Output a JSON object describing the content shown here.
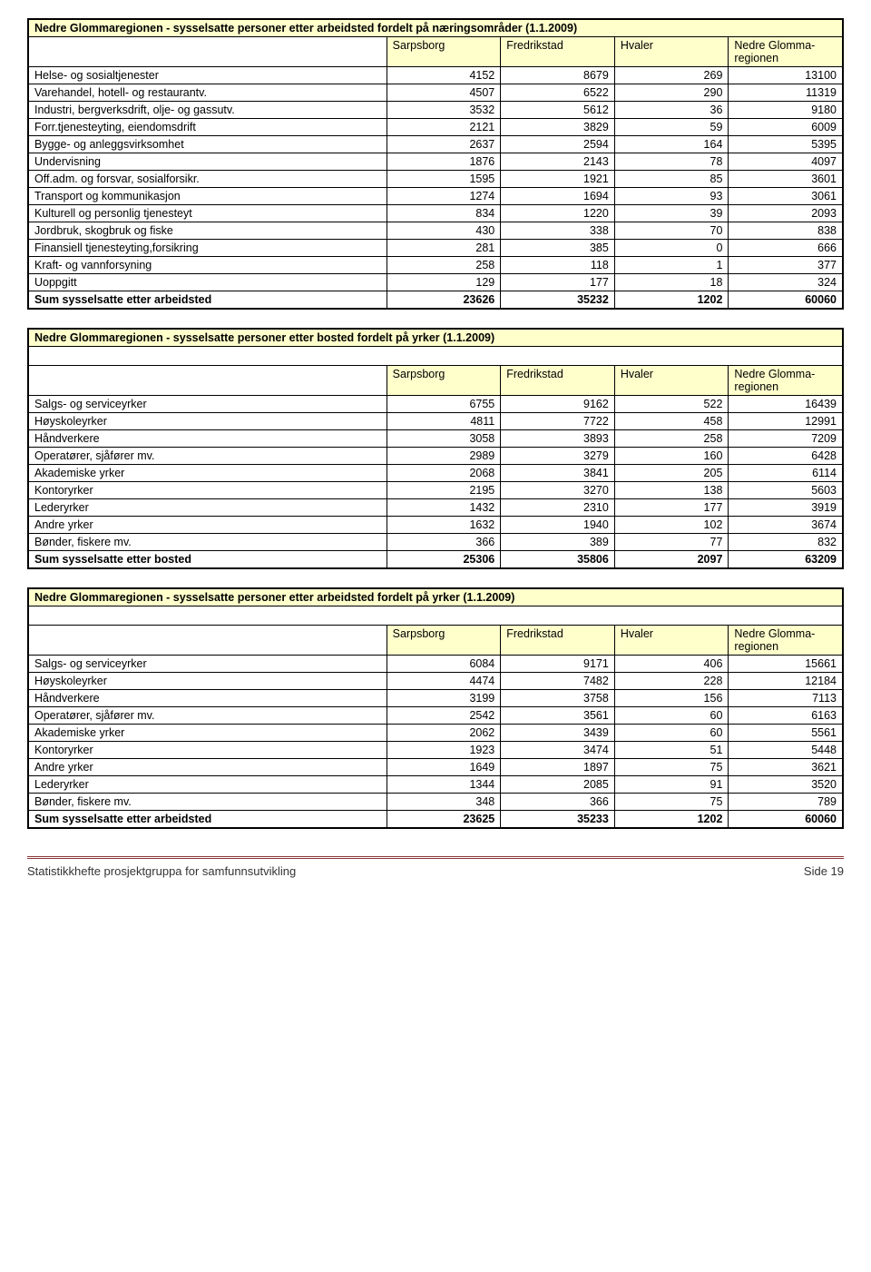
{
  "tables": [
    {
      "title": "Nedre Glommaregionen - sysselsatte personer etter arbeidsted fordelt på næringsområder (1.1.2009)",
      "headers": [
        "Sarpsborg",
        "Fredrikstad",
        "Hvaler",
        "Nedre Glomma-regionen"
      ],
      "rows": [
        {
          "label": "Helse- og sosialtjenester",
          "v": [
            "4152",
            "8679",
            "269",
            "13100"
          ]
        },
        {
          "label": "Varehandel, hotell- og restaurantv.",
          "v": [
            "4507",
            "6522",
            "290",
            "11319"
          ]
        },
        {
          "label": "Industri, bergverksdrift, olje- og gassutv.",
          "v": [
            "3532",
            "5612",
            "36",
            "9180"
          ]
        },
        {
          "label": "Forr.tjenesteyting, eiendomsdrift",
          "v": [
            "2121",
            "3829",
            "59",
            "6009"
          ]
        },
        {
          "label": "Bygge- og anleggsvirksomhet",
          "v": [
            "2637",
            "2594",
            "164",
            "5395"
          ]
        },
        {
          "label": "Undervisning",
          "v": [
            "1876",
            "2143",
            "78",
            "4097"
          ]
        },
        {
          "label": "Off.adm. og forsvar, sosialforsikr.",
          "v": [
            "1595",
            "1921",
            "85",
            "3601"
          ]
        },
        {
          "label": "Transport og kommunikasjon",
          "v": [
            "1274",
            "1694",
            "93",
            "3061"
          ]
        },
        {
          "label": "Kulturell og personlig tjenesteyt",
          "v": [
            "834",
            "1220",
            "39",
            "2093"
          ]
        },
        {
          "label": "Jordbruk, skogbruk og fiske",
          "v": [
            "430",
            "338",
            "70",
            "838"
          ]
        },
        {
          "label": "Finansiell tjenesteyting,forsikring",
          "v": [
            "281",
            "385",
            "0",
            "666"
          ]
        },
        {
          "label": "Kraft- og vannforsyning",
          "v": [
            "258",
            "118",
            "1",
            "377"
          ]
        },
        {
          "label": "Uoppgitt",
          "v": [
            "129",
            "177",
            "18",
            "324"
          ]
        }
      ],
      "sum": {
        "label": "Sum sysselsatte etter arbeidsted",
        "v": [
          "23626",
          "35232",
          "1202",
          "60060"
        ]
      },
      "titleStyle": "inline"
    },
    {
      "title": "Nedre Glommaregionen - sysselsatte personer etter bosted fordelt på yrker (1.1.2009)",
      "headers": [
        "Sarpsborg",
        "Fredrikstad",
        "Hvaler",
        "Nedre Glomma-regionen"
      ],
      "rows": [
        {
          "label": "Salgs- og serviceyrker",
          "v": [
            "6755",
            "9162",
            "522",
            "16439"
          ]
        },
        {
          "label": "Høyskoleyrker",
          "v": [
            "4811",
            "7722",
            "458",
            "12991"
          ]
        },
        {
          "label": "Håndverkere",
          "v": [
            "3058",
            "3893",
            "258",
            "7209"
          ]
        },
        {
          "label": "Operatører, sjåfører mv.",
          "v": [
            "2989",
            "3279",
            "160",
            "6428"
          ]
        },
        {
          "label": "Akademiske yrker",
          "v": [
            "2068",
            "3841",
            "205",
            "6114"
          ]
        },
        {
          "label": "Kontoryrker",
          "v": [
            "2195",
            "3270",
            "138",
            "5603"
          ]
        },
        {
          "label": "Lederyrker",
          "v": [
            "1432",
            "2310",
            "177",
            "3919"
          ]
        },
        {
          "label": "Andre yrker",
          "v": [
            "1632",
            "1940",
            "102",
            "3674"
          ]
        },
        {
          "label": "Bønder, fiskere mv.",
          "v": [
            "366",
            "389",
            "77",
            "832"
          ]
        }
      ],
      "sum": {
        "label": "Sum sysselsatte etter bosted",
        "v": [
          "25306",
          "35806",
          "2097",
          "63209"
        ]
      },
      "titleStyle": "separate"
    },
    {
      "title": "Nedre Glommaregionen - sysselsatte personer etter arbeidsted fordelt på yrker (1.1.2009)",
      "headers": [
        "Sarpsborg",
        "Fredrikstad",
        "Hvaler",
        "Nedre Glomma-regionen"
      ],
      "rows": [
        {
          "label": "Salgs- og serviceyrker",
          "v": [
            "6084",
            "9171",
            "406",
            "15661"
          ]
        },
        {
          "label": "Høyskoleyrker",
          "v": [
            "4474",
            "7482",
            "228",
            "12184"
          ]
        },
        {
          "label": "Håndverkere",
          "v": [
            "3199",
            "3758",
            "156",
            "7113"
          ]
        },
        {
          "label": "Operatører, sjåfører mv.",
          "v": [
            "2542",
            "3561",
            "60",
            "6163"
          ]
        },
        {
          "label": "Akademiske yrker",
          "v": [
            "2062",
            "3439",
            "60",
            "5561"
          ]
        },
        {
          "label": "Kontoryrker",
          "v": [
            "1923",
            "3474",
            "51",
            "5448"
          ]
        },
        {
          "label": "Andre yrker",
          "v": [
            "1649",
            "1897",
            "75",
            "3621"
          ]
        },
        {
          "label": "Lederyrker",
          "v": [
            "1344",
            "2085",
            "91",
            "3520"
          ]
        },
        {
          "label": "Bønder, fiskere mv.",
          "v": [
            "348",
            "366",
            "75",
            "789"
          ]
        }
      ],
      "sum": {
        "label": "Sum sysselsatte etter arbeidsted",
        "v": [
          "23625",
          "35233",
          "1202",
          "60060"
        ]
      },
      "titleStyle": "separate"
    }
  ],
  "footer": {
    "left": "Statistikkhefte prosjektgruppa for samfunnsutvikling",
    "right": "Side 19"
  },
  "colors": {
    "header_bg": "#ffffcc",
    "border": "#000000",
    "footer_rule": "#8b3a3a"
  }
}
